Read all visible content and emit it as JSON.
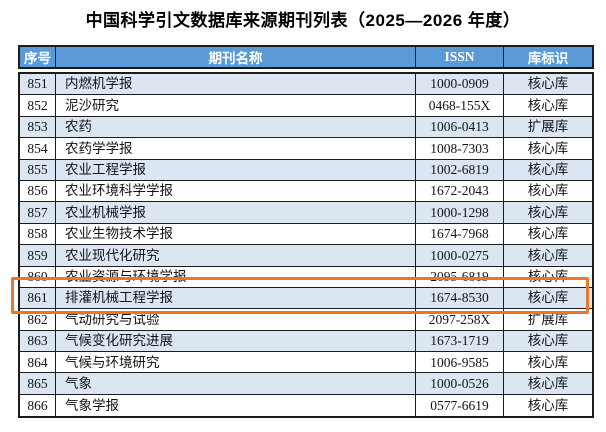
{
  "title": "中国科学引文数据库来源期刊列表（2025—2026 年度）",
  "table": {
    "columns": [
      "序号",
      "期刊名称",
      "ISSN",
      "库标识"
    ],
    "rows": [
      {
        "no": "851",
        "name": "内燃机学报",
        "issn": "1000-0909",
        "db": "核心库"
      },
      {
        "no": "852",
        "name": "泥沙研究",
        "issn": "0468-155X",
        "db": "核心库"
      },
      {
        "no": "853",
        "name": "农药",
        "issn": "1006-0413",
        "db": "扩展库"
      },
      {
        "no": "854",
        "name": "农药学学报",
        "issn": "1008-7303",
        "db": "核心库"
      },
      {
        "no": "855",
        "name": "农业工程学报",
        "issn": "1002-6819",
        "db": "核心库"
      },
      {
        "no": "856",
        "name": "农业环境科学学报",
        "issn": "1672-2043",
        "db": "核心库"
      },
      {
        "no": "857",
        "name": "农业机械学报",
        "issn": "1000-1298",
        "db": "核心库"
      },
      {
        "no": "858",
        "name": "农业生物技术学报",
        "issn": "1674-7968",
        "db": "核心库"
      },
      {
        "no": "859",
        "name": "农业现代化研究",
        "issn": "1000-0275",
        "db": "核心库"
      },
      {
        "no": "860",
        "name": "农业资源与环境学报",
        "issn": "2095-6819",
        "db": "核心库"
      },
      {
        "no": "861",
        "name": "排灌机械工程学报",
        "issn": "1674-8530",
        "db": "核心库",
        "highlighted": true
      },
      {
        "no": "862",
        "name": "气动研究与试验",
        "issn": "2097-258X",
        "db": "扩展库"
      },
      {
        "no": "863",
        "name": "气候变化研究进展",
        "issn": "1673-1719",
        "db": "核心库"
      },
      {
        "no": "864",
        "name": "气候与环境研究",
        "issn": "1006-9585",
        "db": "核心库"
      },
      {
        "no": "865",
        "name": "气象",
        "issn": "1000-0526",
        "db": "核心库"
      },
      {
        "no": "866",
        "name": "气象学报",
        "issn": "0577-6619",
        "db": "核心库"
      }
    ]
  },
  "highlight": {
    "row_no": "861",
    "style": "orange-rectangle-outline"
  },
  "colors": {
    "header_bg": "#5B9BD5",
    "header_text": "#FFFFFF",
    "row_alt_bg": "#DBE6F2",
    "row_bg": "#FFFFFF",
    "border": "#1C1C1C",
    "body_text": "#121218",
    "highlight_border": "#E8772C"
  }
}
